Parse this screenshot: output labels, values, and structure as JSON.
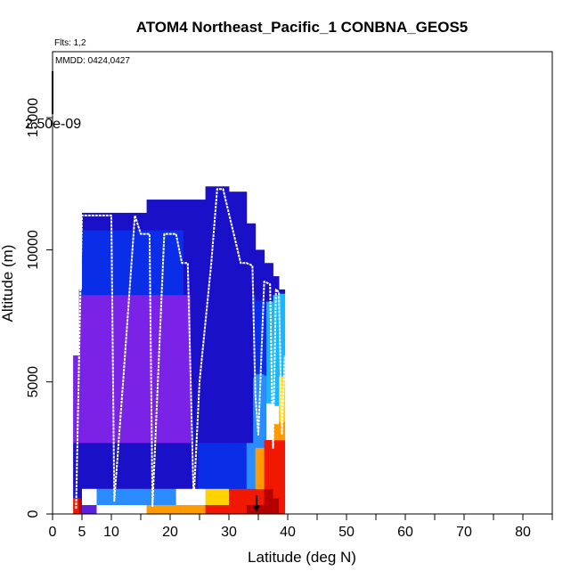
{
  "chart_data": {
    "type": "heatmap",
    "title": "ATOM4 Northeast_Pacific_1 CONBNA_GEOS5",
    "flights_text": "Flts: 1,2",
    "dates_text": "MMDD: 0424,0427",
    "colorbar_max_label": "2.50e-09",
    "xlabel": "Latitude (deg N)",
    "ylabel": "Altitude (m)",
    "xlim": [
      0,
      85
    ],
    "ylim": [
      0,
      17500
    ],
    "x_major_ticks": [
      0,
      5,
      10,
      20,
      30,
      40,
      50,
      60,
      70,
      80
    ],
    "x_major_tick_labels": [
      "0",
      "5",
      "10",
      "20",
      "30",
      "40",
      "50",
      "60",
      "70",
      "80"
    ],
    "x_minor_ticks": [
      15,
      25,
      35,
      45,
      55,
      65,
      75,
      85
    ],
    "y_ticks": [
      0,
      5000,
      10000,
      15000
    ],
    "y_tick_labels": [
      "0",
      "5000",
      "10000",
      "15000"
    ],
    "grid": false,
    "legend": "none",
    "colors": {
      "violet": "#7a22e6",
      "purple": "#5a1ee0",
      "blue": "#1a10c8",
      "mid_blue": "#0a2ee8",
      "light_blue": "#2a8cff",
      "cyan": "#18b8ff",
      "white": "#ffffff",
      "yellow": "#ffd200",
      "orange": "#ff9a00",
      "red": "#f01800",
      "dark_red": "#b40000",
      "flight_track": "#ffffff",
      "marker": "#000000"
    },
    "field_columns": [
      {
        "lat": [
          3.5,
          4.5
        ],
        "top": 6000,
        "bottom_layers": [
          [
            0,
            600,
            "red"
          ]
        ]
      },
      {
        "lat": [
          4.5,
          5
        ],
        "top": 8500,
        "bottom_layers": [
          [
            0,
            600,
            "dark_red"
          ]
        ]
      },
      {
        "lat": [
          5,
          7.5
        ],
        "top": 11400,
        "bottom_layers": [
          [
            0,
            350,
            "purple"
          ],
          [
            350,
            950,
            "white"
          ]
        ]
      },
      {
        "lat": [
          7.5,
          10
        ],
        "top": 11400,
        "bottom_layers": [
          [
            0,
            350,
            "white"
          ],
          [
            350,
            950,
            "light_blue"
          ]
        ]
      },
      {
        "lat": [
          10,
          16
        ],
        "top": 11400,
        "bottom_layers": [
          [
            0,
            350,
            "white"
          ],
          [
            350,
            950,
            "light_blue"
          ]
        ]
      },
      {
        "lat": [
          16,
          21
        ],
        "top": 11900,
        "bottom_layers": [
          [
            0,
            350,
            "orange"
          ],
          [
            350,
            950,
            "light_blue"
          ]
        ]
      },
      {
        "lat": [
          21,
          26
        ],
        "top": 11900,
        "bottom_layers": [
          [
            0,
            350,
            "orange"
          ],
          [
            350,
            950,
            "white"
          ]
        ]
      },
      {
        "lat": [
          26,
          30
        ],
        "top": 12400,
        "bottom_layers": [
          [
            0,
            350,
            "red"
          ],
          [
            350,
            950,
            "yellow"
          ]
        ]
      },
      {
        "lat": [
          30,
          33
        ],
        "top": 12200,
        "bottom_layers": [
          [
            0,
            350,
            "red"
          ],
          [
            350,
            950,
            "red"
          ]
        ]
      },
      {
        "lat": [
          33,
          34.5
        ],
        "top": 11000,
        "bottom_layers": [
          [
            0,
            350,
            "dark_red"
          ],
          [
            350,
            950,
            "red"
          ]
        ]
      },
      {
        "lat": [
          34.5,
          36
        ],
        "top": 10000,
        "bottom_layers": [
          [
            0,
            350,
            "dark_red"
          ],
          [
            350,
            950,
            "red"
          ],
          [
            950,
            2500,
            "orange"
          ]
        ]
      },
      {
        "lat": [
          36,
          37.5
        ],
        "top": 9500,
        "bottom_layers": [
          [
            0,
            350,
            "dark_red"
          ],
          [
            350,
            950,
            "dark_red"
          ],
          [
            950,
            2800,
            "red"
          ]
        ]
      },
      {
        "lat": [
          37.5,
          38.5
        ],
        "top": 9000,
        "bottom_layers": [
          [
            0,
            600,
            "dark_red"
          ],
          [
            600,
            2800,
            "red"
          ],
          [
            2800,
            3400,
            "orange"
          ]
        ]
      },
      {
        "lat": [
          38.5,
          39.5
        ],
        "top": 8500,
        "bottom_layers": [
          [
            0,
            2800,
            "red"
          ],
          [
            2800,
            3500,
            "orange"
          ],
          [
            3500,
            5200,
            "yellow"
          ]
        ]
      }
    ],
    "flight_track": {
      "lat": [
        4,
        5,
        7,
        9,
        10,
        10.5,
        12,
        14,
        15,
        16.5,
        17,
        19,
        20,
        21,
        22,
        23,
        24,
        25,
        27,
        28,
        29,
        32,
        33,
        34,
        34.5,
        35,
        36,
        37,
        37.5,
        38,
        38.5,
        39,
        39.5
      ],
      "alt": [
        200,
        11300,
        11300,
        11300,
        11300,
        500,
        5000,
        11300,
        10600,
        10600,
        300,
        10600,
        10600,
        10600,
        9500,
        9500,
        500,
        5000,
        9500,
        12300,
        12300,
        9500,
        9500,
        9400,
        4500,
        3000,
        8800,
        8700,
        2500,
        8500,
        8400,
        3000,
        6000
      ]
    },
    "marker": {
      "lat": 34.7,
      "alt_top": 700,
      "alt_bottom": 0
    }
  }
}
